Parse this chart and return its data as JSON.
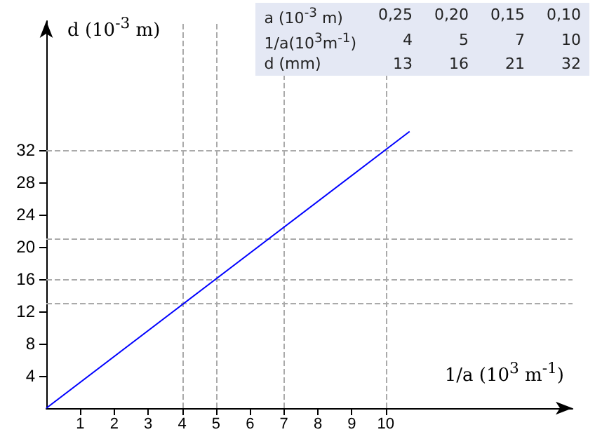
{
  "chart_data": {
    "type": "line",
    "xlabel": "1/a (10$^{3}$ m$^{-1}$)",
    "ylabel": "d (10$^{-3}$ m)",
    "x": [
      0,
      10.7
    ],
    "series": [
      {
        "color": "#0000ff",
        "values": [
          0,
          34.3
        ]
      }
    ],
    "xlim": [
      0,
      15.5
    ],
    "xticks": [
      1,
      2,
      3,
      4,
      5,
      6,
      7,
      8,
      9,
      10
    ],
    "ylim": [
      0,
      48
    ],
    "yticks": [
      4,
      8,
      12,
      16,
      20,
      24,
      28,
      32
    ],
    "grid": false,
    "marker": "none",
    "line_style": "solid",
    "ref_lines": [
      {
        "axis": "x",
        "value": 4,
        "color": "#aaaaaa",
        "line_style": "dashed"
      },
      {
        "axis": "x",
        "value": 5,
        "color": "#aaaaaa",
        "line_style": "dashed"
      },
      {
        "axis": "x",
        "value": 7,
        "color": "#aaaaaa",
        "line_style": "dashed"
      },
      {
        "axis": "x",
        "value": 10,
        "color": "#aaaaaa",
        "line_style": "dashed"
      },
      {
        "axis": "y",
        "value": 13,
        "color": "#aaaaaa",
        "line_style": "dashed"
      },
      {
        "axis": "y",
        "value": 16,
        "color": "#aaaaaa",
        "line_style": "dashed"
      },
      {
        "axis": "y",
        "value": 21,
        "color": "#aaaaaa",
        "line_style": "dashed"
      },
      {
        "axis": "y",
        "value": 32,
        "color": "#aaaaaa",
        "line_style": "dashed"
      }
    ],
    "annotations": [
      "a (10$^{-3}$ m)",
      "0,25",
      "0,20",
      "0,15",
      "0,10",
      "1/a(10$^{3}$m$^{-1}$)",
      "4",
      "5",
      "7",
      "10",
      "d (mm)",
      "13",
      "16",
      "21",
      "32"
    ]
  }
}
